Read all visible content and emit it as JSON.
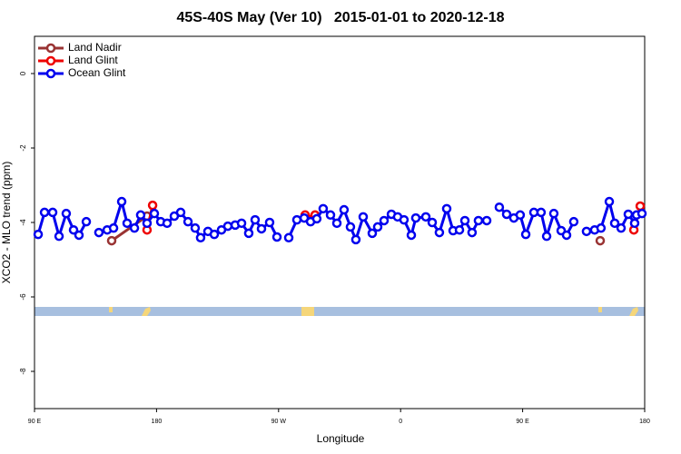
{
  "chart_data": {
    "type": "line",
    "title": "45S-40S May (Ver 10)   2015-01-01 to 2020-12-18",
    "x_label": "Longitude",
    "y_label": "XCO2 - MLO trend (ppm)",
    "xlim": [
      90,
      540
    ],
    "ylim": [
      -9,
      1
    ],
    "xticks": [
      {
        "value": 90,
        "label": "90 E"
      },
      180,
      {
        "value": 270,
        "label": "90 W"
      },
      {
        "value": 360,
        "label": "0"
      },
      {
        "value": 450,
        "label": "90 E"
      },
      {
        "value": 540,
        "label": "180"
      }
    ],
    "yticks": [
      0,
      -2,
      -4,
      -6,
      -8
    ],
    "legend": "top-left",
    "series": [
      {
        "name": "Land Nadir",
        "color": "#993333",
        "x": [
          146.9,
          173.0,
          null,
          507.2
        ],
        "values": [
          -4.49,
          -3.83,
          null,
          -4.49
        ]
      },
      {
        "name": "Land Glint",
        "color": "#ee0000",
        "x": [
          173.0,
          177.1,
          null,
          289.6,
          292.9,
          296.9,
          null,
          532.0,
          536.7
        ],
        "values": [
          -4.2,
          -3.54,
          null,
          -3.8,
          -3.93,
          -3.8,
          null,
          -4.2,
          -3.56
        ]
      },
      {
        "name": "Ocean Glint",
        "color": "#0000ee",
        "x": [
          92.7,
          97.4,
          103.4,
          108.1,
          113.4,
          118.8,
          122.8,
          128.2,
          null,
          137.5,
          143.6,
          148.3,
          154.3,
          158.3,
          163.7,
          168.3,
          173.0,
          178.4,
          183.1,
          187.8,
          193.1,
          197.8,
          203.2,
          208.5,
          212.5,
          217.9,
          222.6,
          227.9,
          232.6,
          238.0,
          242.7,
          248.0,
          252.7,
          257.4,
          263.4,
          268.8,
          null,
          277.5,
          283.5,
          288.9,
          293.6,
          298.2,
          302.9,
          308.3,
          313.0,
          318.3,
          323.0,
          327.0,
          332.4,
          339.1,
          343.1,
          347.8,
          353.2,
          357.8,
          362.5,
          367.9,
          371.2,
          378.6,
          383.3,
          388.6,
          394.0,
          398.7,
          403.4,
          407.4,
          412.7,
          417.4,
          423.5,
          null,
          432.8,
          438.2,
          443.5,
          448.2,
          452.3,
          458.3,
          463.6,
          467.7,
          473.0,
          478.4,
          482.4,
          487.7,
          null,
          497.1,
          503.1,
          507.8,
          513.9,
          517.9,
          522.6,
          527.9,
          532.6,
          534.0,
          538.0
        ],
        "values": [
          -4.32,
          -3.73,
          -3.73,
          -4.37,
          -3.76,
          -4.2,
          -4.34,
          -3.98,
          null,
          -4.27,
          -4.2,
          -4.15,
          -3.44,
          -4.02,
          -4.15,
          -3.8,
          -4.02,
          -3.76,
          -3.98,
          -4.02,
          -3.83,
          -3.73,
          -3.98,
          -4.15,
          -4.41,
          -4.24,
          -4.32,
          -4.2,
          -4.1,
          -4.07,
          -4.02,
          -4.29,
          -3.93,
          -4.17,
          -4.0,
          -4.39,
          null,
          -4.41,
          -3.93,
          -3.88,
          -3.98,
          -3.9,
          -3.63,
          -3.8,
          -4.02,
          -3.66,
          -4.12,
          -4.46,
          -3.85,
          -4.29,
          -4.12,
          -3.95,
          -3.78,
          -3.85,
          -3.93,
          -4.34,
          -3.88,
          -3.85,
          -4.0,
          -4.27,
          -3.63,
          -4.22,
          -4.2,
          -3.95,
          -4.27,
          -3.95,
          -3.95,
          null,
          -3.59,
          -3.78,
          -3.88,
          -3.8,
          -4.32,
          -3.73,
          -3.73,
          -4.37,
          -3.76,
          -4.22,
          -4.34,
          -3.98,
          null,
          -4.24,
          -4.2,
          -4.15,
          -3.44,
          -4.02,
          -4.15,
          -3.78,
          -4.02,
          -3.8,
          -3.76
        ]
      }
    ]
  }
}
